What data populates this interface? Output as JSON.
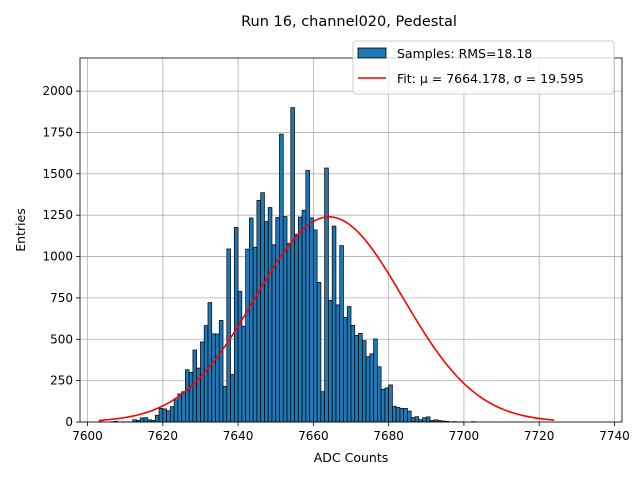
{
  "chart_data": {
    "type": "bar",
    "title": "Run 16, channel020, Pedestal",
    "xlabel": "ADC Counts",
    "ylabel": "Entries",
    "xlim": [
      7598,
      7742
    ],
    "ylim": [
      0,
      2200
    ],
    "xticks": [
      7600,
      7620,
      7640,
      7660,
      7680,
      7700,
      7720,
      7740
    ],
    "yticks": [
      0,
      250,
      500,
      750,
      1000,
      1250,
      1500,
      1750,
      2000
    ],
    "grid": true,
    "legend_position": "top-right",
    "series": [
      {
        "name": "Samples: RMS=18.18",
        "kind": "histogram",
        "color": "#1f77b4",
        "edgecolor": "#000000",
        "bin_start": 7603,
        "bin_width": 1,
        "values": [
          2,
          0,
          0,
          1,
          4,
          0,
          1,
          1,
          1,
          14,
          10,
          25,
          26,
          13,
          10,
          41,
          82,
          79,
          68,
          93,
          134,
          170,
          183,
          316,
          300,
          435,
          326,
          484,
          583,
          722,
          533,
          532,
          614,
          216,
          1046,
          288,
          1176,
          789,
          579,
          1045,
          1233,
          1056,
          1340,
          1386,
          1212,
          1296,
          1071,
          1236,
          1740,
          1242,
          1079,
          1900,
          1135,
          1239,
          1280,
          1520,
          1234,
          1161,
          844,
          183,
          1535,
          736,
          1184,
          708,
          1066,
          632,
          698,
          584,
          524,
          536,
          492,
          395,
          412,
          502,
          334,
          198,
          206,
          224,
          95,
          88,
          82,
          82,
          66,
          27,
          32,
          14,
          26,
          31,
          9,
          13,
          9,
          6,
          4,
          1,
          2,
          1,
          1,
          0,
          0,
          2
        ]
      },
      {
        "name": "Fit: μ = 7664.178, σ = 19.595",
        "kind": "line",
        "color": "#ff0000",
        "mu": 7664.178,
        "sigma": 19.595,
        "amplitude": 1240,
        "x_range": [
          7603,
          7724
        ]
      }
    ]
  }
}
